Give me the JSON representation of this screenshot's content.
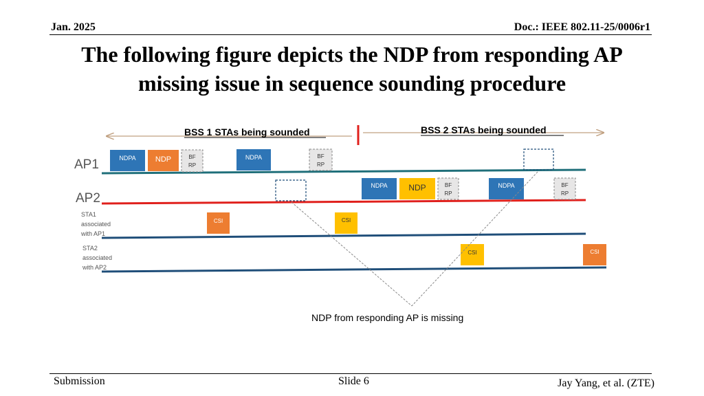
{
  "header": {
    "date": "Jan. 2025",
    "doc": "Doc.: IEEE 802.11-25/0006r1"
  },
  "title": {
    "line1": "The following figure depicts the NDP from responding AP",
    "line2": "missing issue in sequence sounding procedure"
  },
  "diagram": {
    "bss1_label": "BSS 1 STAs being sounded",
    "bss2_label": "BSS 2 STAs being sounded",
    "lanes": {
      "ap1": "AP1",
      "ap2": "AP2",
      "sta1_line1": "STA1",
      "sta1_line2": "associated",
      "sta1_line3": "with AP1",
      "sta2_line1": "STA2",
      "sta2_line2": "associated",
      "sta2_line3": "with AP2"
    },
    "frames": {
      "ndpa": "NDPA",
      "ndp": "NDP",
      "bfrp_line1": "BF",
      "bfrp_line2": "RP",
      "csi": "CSI"
    },
    "annotation": "NDP from responding AP is missing",
    "colors": {
      "ndpa": "#2e75b6",
      "ndp_ap1": "#ed7d31",
      "ndp_ap2": "#ffc000",
      "bfrp": "#e7e6e6",
      "csi_orange": "#ed7d31",
      "csi_yellow": "#ffc000",
      "ap1_line": "#1f6f7a",
      "ap2_line": "#e0201c",
      "sta_line": "#1f4e79",
      "divider": "#e0201c"
    }
  },
  "footer": {
    "left": "Submission",
    "center": "Slide 6",
    "right": "Jay Yang, et al. (ZTE)"
  }
}
